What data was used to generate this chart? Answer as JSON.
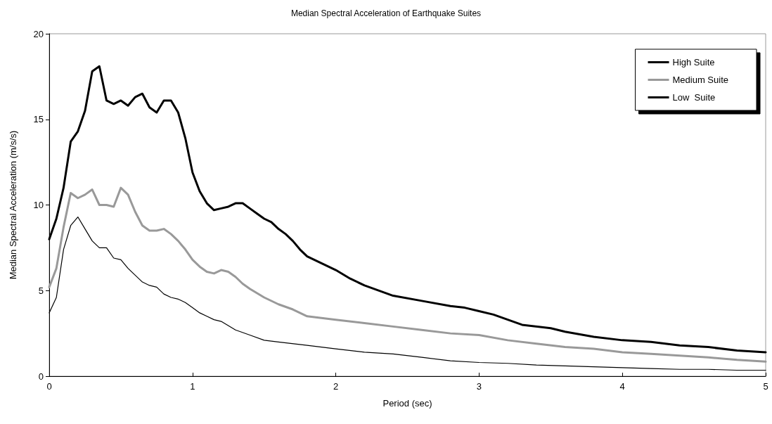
{
  "chart_data": {
    "type": "line",
    "title": "Median Spectral Acceleration of Earthquake Suites",
    "xlabel": "Period (sec)",
    "ylabel": "Median Spectral Acceleration (m/s/s)",
    "xlim": [
      0,
      5
    ],
    "xticks": [
      0,
      1,
      2,
      3,
      4,
      5
    ],
    "ylim": [
      0,
      20
    ],
    "yticks": [
      0,
      5,
      10,
      15,
      20
    ],
    "grid": false,
    "legend": "top right",
    "marker": "none",
    "line_style": "solid",
    "series": [
      {
        "name": "High Suite",
        "color": "#000000",
        "x": [
          0,
          0.05,
          0.1,
          0.15,
          0.2,
          0.25,
          0.3,
          0.35,
          0.4,
          0.45,
          0.5,
          0.55,
          0.6,
          0.65,
          0.7,
          0.75,
          0.8,
          0.85,
          0.9,
          0.95,
          1.0,
          1.05,
          1.1,
          1.15,
          1.2,
          1.3,
          1.4,
          1.5,
          1.6,
          1.8,
          2.0,
          2.2,
          2.4,
          2.6,
          2.8,
          3.0,
          3.2,
          3.4,
          3.6,
          3.8,
          4.0,
          4.2,
          4.4,
          4.6,
          4.8,
          5.0
        ],
        "values": [
          3.7,
          4.6,
          7.4,
          8.8,
          9.3,
          8.6,
          7.9,
          7.5,
          7.5,
          6.9,
          6.8,
          6.3,
          5.9,
          5.5,
          5.3,
          5.2,
          4.8,
          4.6,
          4.5,
          4.3,
          4.0,
          3.7,
          3.5,
          3.3,
          3.2,
          2.7,
          2.4,
          2.1,
          2.0,
          1.8,
          1.6,
          1.4,
          1.3,
          1.1,
          0.9,
          0.8,
          0.75,
          0.65,
          0.6,
          0.55,
          0.5,
          0.45,
          0.4,
          0.4,
          0.35,
          0.35
        ]
      },
      {
        "name": "Medium Suite",
        "color": "#999999",
        "x": [
          0,
          0.05,
          0.1,
          0.15,
          0.2,
          0.25,
          0.3,
          0.35,
          0.4,
          0.45,
          0.5,
          0.55,
          0.6,
          0.65,
          0.7,
          0.75,
          0.8,
          0.85,
          0.9,
          0.95,
          1.0,
          1.05,
          1.1,
          1.15,
          1.2,
          1.25,
          1.3,
          1.35,
          1.4,
          1.5,
          1.6,
          1.7,
          1.8,
          1.9,
          2.0,
          2.2,
          2.4,
          2.6,
          2.8,
          3.0,
          3.2,
          3.4,
          3.6,
          3.8,
          4.0,
          4.2,
          4.4,
          4.6,
          4.8,
          5.0
        ],
        "values": [
          5.2,
          6.3,
          8.7,
          10.7,
          10.4,
          10.6,
          10.9,
          10.0,
          10.0,
          9.9,
          11.0,
          10.6,
          9.6,
          8.8,
          8.5,
          8.5,
          8.6,
          8.3,
          7.9,
          7.4,
          6.8,
          6.4,
          6.1,
          6.0,
          6.2,
          6.1,
          5.8,
          5.4,
          5.1,
          4.6,
          4.2,
          3.9,
          3.5,
          3.4,
          3.3,
          3.1,
          2.9,
          2.7,
          2.5,
          2.4,
          2.1,
          1.9,
          1.7,
          1.6,
          1.4,
          1.3,
          1.2,
          1.1,
          0.95,
          0.85
        ]
      },
      {
        "name": "Low  Suite",
        "color": "#000000",
        "x": [
          0,
          0.05,
          0.1,
          0.15,
          0.2,
          0.25,
          0.3,
          0.35,
          0.4,
          0.45,
          0.5,
          0.55,
          0.6,
          0.65,
          0.7,
          0.75,
          0.8,
          0.85,
          0.9,
          0.95,
          1.0,
          1.05,
          1.1,
          1.15,
          1.2,
          1.25,
          1.3,
          1.35,
          1.4,
          1.45,
          1.5,
          1.55,
          1.6,
          1.65,
          1.7,
          1.75,
          1.8,
          1.9,
          2.0,
          2.1,
          2.2,
          2.4,
          2.6,
          2.8,
          2.9,
          3.0,
          3.1,
          3.2,
          3.3,
          3.5,
          3.6,
          3.8,
          4.0,
          4.2,
          4.4,
          4.6,
          4.8,
          5.0
        ],
        "values": [
          8.0,
          9.2,
          11.0,
          13.7,
          14.3,
          15.5,
          17.8,
          18.1,
          16.1,
          15.9,
          16.1,
          15.8,
          16.3,
          16.5,
          15.7,
          15.4,
          16.1,
          16.1,
          15.4,
          13.9,
          11.9,
          10.8,
          10.1,
          9.7,
          9.8,
          9.9,
          10.1,
          10.1,
          9.8,
          9.5,
          9.2,
          9.0,
          8.6,
          8.3,
          7.9,
          7.4,
          7.0,
          6.6,
          6.2,
          5.7,
          5.3,
          4.7,
          4.4,
          4.1,
          4.0,
          3.8,
          3.6,
          3.3,
          3.0,
          2.8,
          2.6,
          2.3,
          2.1,
          2.0,
          1.8,
          1.7,
          1.5,
          1.4
        ]
      }
    ]
  }
}
